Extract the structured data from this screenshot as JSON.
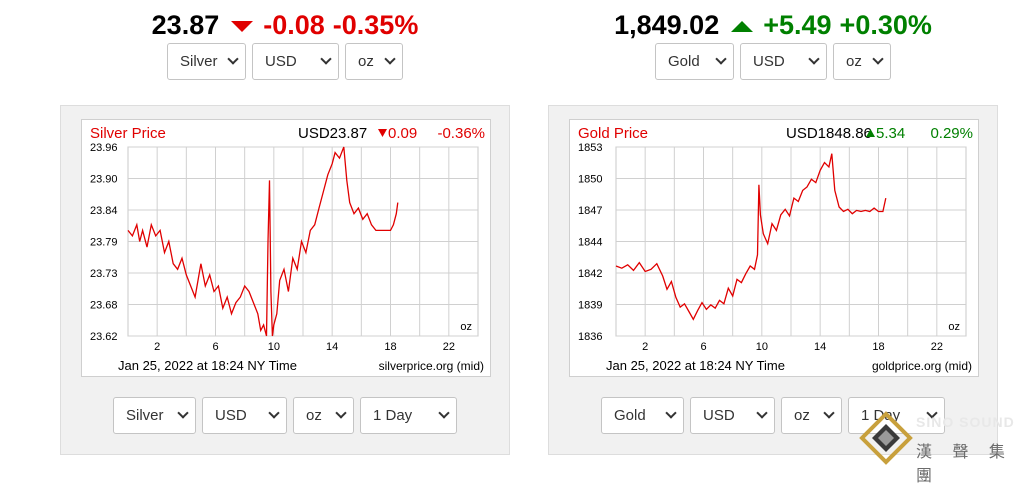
{
  "widgets": [
    {
      "id": "silver",
      "quote": {
        "price": "23.87",
        "direction": "down",
        "change": "-0.08",
        "pct": "-0.35%"
      },
      "selectors_top": [
        {
          "name": "metal-select",
          "value": "Silver"
        },
        {
          "name": "currency-select",
          "value": "USD"
        },
        {
          "name": "unit-select",
          "value": "oz"
        }
      ],
      "selectors_bottom": [
        {
          "name": "metal-select",
          "value": "Silver"
        },
        {
          "name": "currency-select",
          "value": "USD"
        },
        {
          "name": "unit-select",
          "value": "oz"
        },
        {
          "name": "range-select",
          "value": "1 Day"
        }
      ]
    },
    {
      "id": "gold",
      "quote": {
        "price": "1,849.02",
        "direction": "up",
        "change": "+5.49",
        "pct": "+0.30%"
      },
      "selectors_top": [
        {
          "name": "metal-select",
          "value": "Gold"
        },
        {
          "name": "currency-select",
          "value": "USD"
        },
        {
          "name": "unit-select",
          "value": "oz"
        }
      ],
      "selectors_bottom": [
        {
          "name": "metal-select",
          "value": "Gold"
        },
        {
          "name": "currency-select",
          "value": "USD"
        },
        {
          "name": "unit-select",
          "value": "oz"
        },
        {
          "name": "range-select",
          "value": "1 Day"
        }
      ]
    }
  ],
  "chart_data": [
    {
      "type": "line",
      "title": "Silver Price",
      "header_value": "USD23.87",
      "header_direction": "down",
      "header_change": "0.09",
      "header_pct": "-0.36%",
      "ylabel_unit": "oz",
      "x_ticks": [
        2,
        6,
        10,
        14,
        18,
        22
      ],
      "y_ticks": [
        "23.96",
        "23.90",
        "23.84",
        "23.79",
        "23.73",
        "23.68",
        "23.62"
      ],
      "xlim": [
        0,
        24
      ],
      "ylim": [
        23.62,
        23.96
      ],
      "grid": true,
      "timestamp": "Jan 25, 2022 at 18:24 NY Time",
      "source": "silverprice.org (mid)",
      "line_color": "#e00000",
      "change_color": "#e00000",
      "series": [
        {
          "x": [
            0.0,
            0.3,
            0.6,
            0.8,
            1.0,
            1.3,
            1.6,
            1.9,
            2.2,
            2.5,
            2.8,
            3.1,
            3.4,
            3.7,
            4.0,
            4.3,
            4.6,
            4.8,
            5.0,
            5.3,
            5.6,
            5.9,
            6.2,
            6.5,
            6.8,
            7.1,
            7.4,
            7.7,
            8.0,
            8.3,
            8.6,
            8.9,
            9.1,
            9.3,
            9.5,
            9.6,
            9.7,
            9.8,
            9.9,
            10.0,
            10.2,
            10.4,
            10.7,
            11.0,
            11.3,
            11.6,
            11.9,
            12.2,
            12.5,
            12.8,
            13.1,
            13.4,
            13.7,
            14.0,
            14.2,
            14.5,
            14.8,
            15.0,
            15.2,
            15.5,
            15.8,
            16.1,
            16.4,
            16.7,
            17.0,
            17.5,
            18.0,
            18.2,
            18.4,
            18.5
          ],
          "y": [
            23.81,
            23.8,
            23.82,
            23.79,
            23.81,
            23.78,
            23.82,
            23.8,
            23.81,
            23.77,
            23.79,
            23.75,
            23.74,
            23.76,
            23.73,
            23.71,
            23.69,
            23.72,
            23.75,
            23.71,
            23.73,
            23.7,
            23.71,
            23.67,
            23.69,
            23.66,
            23.68,
            23.69,
            23.71,
            23.7,
            23.68,
            23.66,
            23.63,
            23.64,
            23.62,
            23.79,
            23.9,
            23.7,
            23.62,
            23.64,
            23.66,
            23.72,
            23.74,
            23.7,
            23.76,
            23.74,
            23.79,
            23.77,
            23.81,
            23.82,
            23.85,
            23.88,
            23.91,
            23.93,
            23.95,
            23.94,
            23.96,
            23.9,
            23.86,
            23.84,
            23.85,
            23.83,
            23.84,
            23.82,
            23.81,
            23.81,
            23.81,
            23.82,
            23.84,
            23.86
          ]
        }
      ]
    },
    {
      "type": "line",
      "title": "Gold Price",
      "header_value": "USD1848.86",
      "header_direction": "up",
      "header_change": "5.34",
      "header_pct": "0.29%",
      "ylabel_unit": "oz",
      "x_ticks": [
        2,
        6,
        10,
        14,
        18,
        22
      ],
      "y_ticks": [
        "1853",
        "1850",
        "1847",
        "1844",
        "1842",
        "1839",
        "1836"
      ],
      "xlim": [
        0,
        24
      ],
      "ylim": [
        1836,
        1853
      ],
      "grid": true,
      "timestamp": "Jan 25, 2022 at 18:24 NY Time",
      "source": "goldprice.org (mid)",
      "line_color": "#e00000",
      "change_color": "#008000",
      "series": [
        {
          "x": [
            0.0,
            0.4,
            0.8,
            1.2,
            1.6,
            2.0,
            2.4,
            2.8,
            3.2,
            3.5,
            3.8,
            4.1,
            4.4,
            4.7,
            5.0,
            5.3,
            5.6,
            5.9,
            6.2,
            6.5,
            6.8,
            7.1,
            7.4,
            7.7,
            8.0,
            8.3,
            8.6,
            8.9,
            9.2,
            9.5,
            9.7,
            9.8,
            9.9,
            10.1,
            10.4,
            10.7,
            11.0,
            11.3,
            11.6,
            11.9,
            12.2,
            12.5,
            12.8,
            13.1,
            13.4,
            13.7,
            14.0,
            14.3,
            14.6,
            14.8,
            15.0,
            15.3,
            15.6,
            15.9,
            16.2,
            16.5,
            16.8,
            17.1,
            17.4,
            17.7,
            18.0,
            18.3,
            18.5
          ],
          "y": [
            1842.3,
            1842.1,
            1842.4,
            1841.9,
            1842.6,
            1841.8,
            1842.0,
            1842.5,
            1841.4,
            1840.2,
            1840.9,
            1839.5,
            1838.6,
            1838.9,
            1838.2,
            1837.5,
            1838.3,
            1839.0,
            1838.4,
            1838.8,
            1838.5,
            1839.2,
            1838.9,
            1840.3,
            1839.6,
            1841.1,
            1840.8,
            1841.6,
            1842.3,
            1842.0,
            1843.3,
            1849.6,
            1846.9,
            1845.2,
            1844.3,
            1846.1,
            1845.5,
            1846.9,
            1847.4,
            1846.8,
            1848.4,
            1848.1,
            1849.1,
            1849.4,
            1850.1,
            1849.8,
            1850.9,
            1851.6,
            1851.2,
            1852.4,
            1849.1,
            1847.6,
            1847.2,
            1847.4,
            1847.0,
            1847.3,
            1847.2,
            1847.3,
            1847.2,
            1847.5,
            1847.2,
            1847.2,
            1848.4
          ]
        }
      ]
    }
  ],
  "watermark": {
    "text": "SINO SOUND",
    "chinese": "漢 聲 集 團",
    "colors": [
      "#c8a03c",
      "#3a3a3a",
      "#9a9a9a"
    ]
  }
}
